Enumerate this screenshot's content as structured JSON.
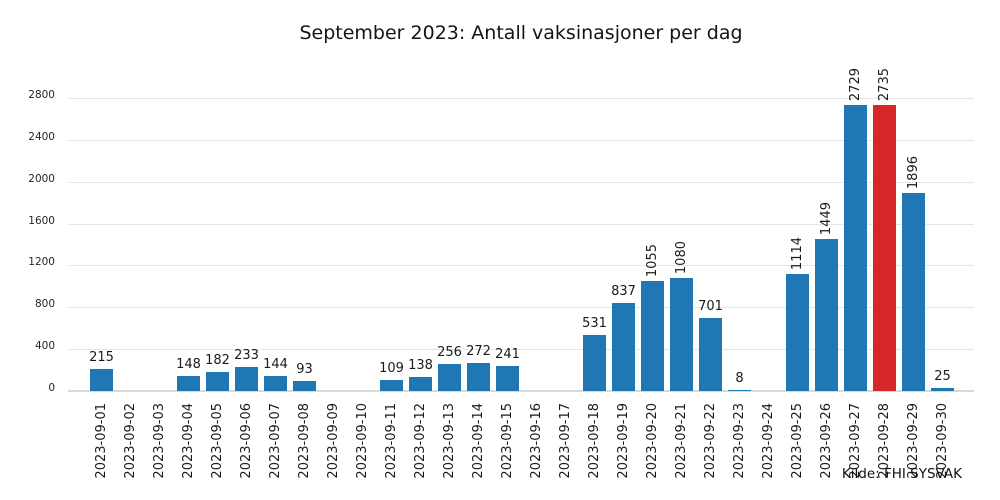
{
  "page": {
    "background": "#ffffff"
  },
  "chart_data": {
    "type": "bar",
    "title": "September 2023: Antall vaksinasjoner per dag",
    "source": "Kilde: FHI SYSVAK",
    "categories": [
      "2023-09-01",
      "2023-09-02",
      "2023-09-03",
      "2023-09-04",
      "2023-09-05",
      "2023-09-06",
      "2023-09-07",
      "2023-09-08",
      "2023-09-09",
      "2023-09-10",
      "2023-09-11",
      "2023-09-12",
      "2023-09-13",
      "2023-09-14",
      "2023-09-15",
      "2023-09-16",
      "2023-09-17",
      "2023-09-18",
      "2023-09-19",
      "2023-09-20",
      "2023-09-21",
      "2023-09-22",
      "2023-09-23",
      "2023-09-24",
      "2023-09-25",
      "2023-09-26",
      "2023-09-27",
      "2023-09-28",
      "2023-09-29",
      "2023-09-30"
    ],
    "values": [
      215,
      0,
      0,
      148,
      182,
      233,
      144,
      93,
      0,
      0,
      109,
      138,
      256,
      272,
      241,
      0,
      0,
      531,
      837,
      1055,
      1080,
      701,
      8,
      0,
      1114,
      1449,
      2729,
      2735,
      1896,
      25
    ],
    "bar_color": "#1f77b4",
    "highlight_color": "#d62728",
    "highlight_category": "2023-09-28",
    "highlight_index": 27,
    "yticks": [
      0,
      400,
      800,
      1200,
      1600,
      2000,
      2400,
      2800
    ],
    "ylim": [
      0,
      2800
    ],
    "xlabel": "",
    "ylabel": "",
    "grid": true,
    "legend": "none",
    "layout_hints": {
      "x_tick_rotation": 90,
      "value_labels": "above bars; values >= 1000 rotated 90 degrees; zero-value days have no bar and no label"
    }
  }
}
